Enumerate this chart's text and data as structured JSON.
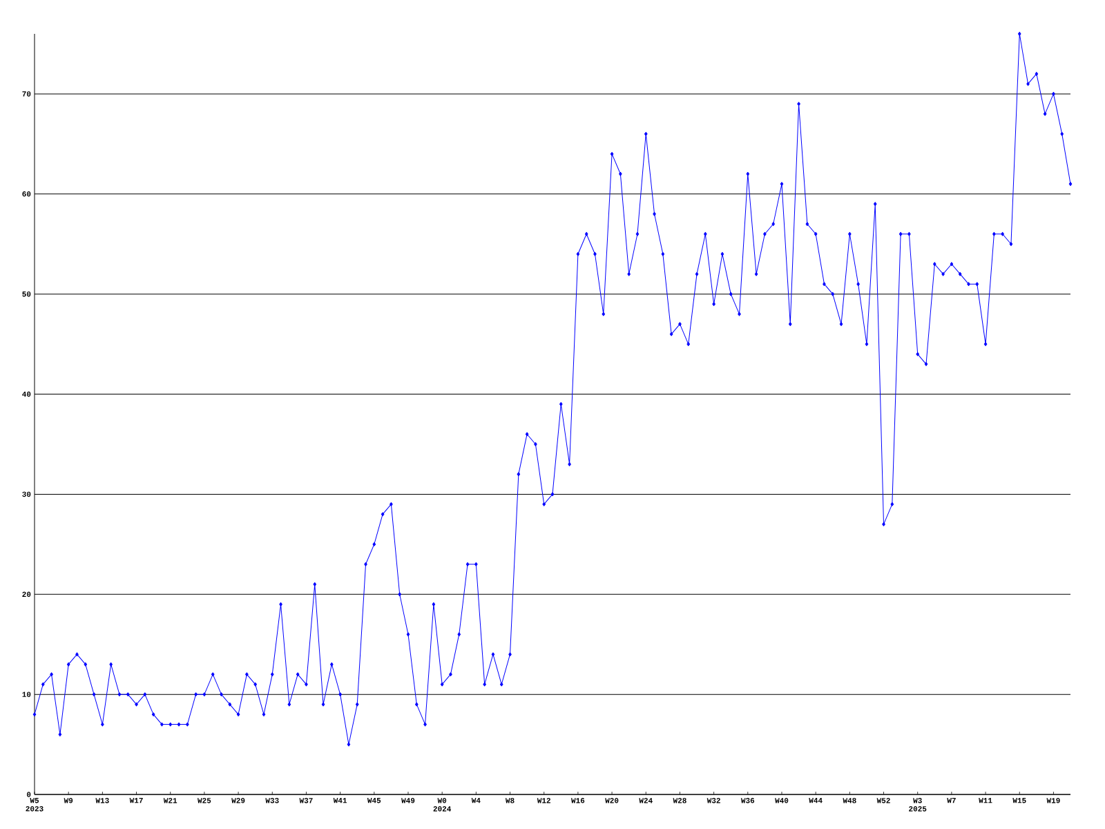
{
  "chart_data": {
    "type": "line",
    "categories": [
      "W5 2023",
      null,
      null,
      null,
      "W9",
      null,
      null,
      null,
      "W13",
      null,
      null,
      null,
      "W17",
      null,
      null,
      null,
      "W21",
      null,
      null,
      null,
      "W25",
      null,
      null,
      null,
      "W29",
      null,
      null,
      null,
      "W33",
      null,
      null,
      null,
      "W37",
      null,
      null,
      null,
      "W41",
      null,
      null,
      null,
      "W45",
      null,
      null,
      null,
      "W49",
      null,
      null,
      null,
      "W0 2024",
      null,
      null,
      null,
      "W4",
      null,
      null,
      null,
      "W8",
      null,
      null,
      null,
      "W12",
      null,
      null,
      null,
      "W16",
      null,
      null,
      null,
      "W20",
      null,
      null,
      null,
      "W24",
      null,
      null,
      null,
      "W28",
      null,
      null,
      null,
      "W32",
      null,
      null,
      null,
      "W36",
      null,
      null,
      null,
      "W40",
      null,
      null,
      null,
      "W44",
      null,
      null,
      null,
      "W48",
      null,
      null,
      null,
      "W52",
      null,
      null,
      null,
      "W3 2025",
      null,
      null,
      null,
      "W7",
      null,
      null,
      null,
      "W11",
      null,
      null,
      null,
      "W15",
      null,
      null,
      null,
      "W19",
      null,
      null
    ],
    "series": [
      {
        "color": "#0000ff",
        "values": [
          8,
          11,
          12,
          6,
          13,
          14,
          13,
          10,
          7,
          13,
          10,
          10,
          9,
          10,
          8,
          7,
          7,
          7,
          7,
          10,
          10,
          12,
          10,
          9,
          8,
          12,
          11,
          8,
          12,
          19,
          9,
          12,
          11,
          21,
          9,
          13,
          10,
          5,
          9,
          23,
          25,
          28,
          29,
          20,
          16,
          9,
          7,
          19,
          11,
          12,
          16,
          23,
          23,
          11,
          14,
          11,
          14,
          32,
          36,
          35,
          29,
          30,
          39,
          33,
          54,
          56,
          54,
          48,
          64,
          62,
          52,
          56,
          66,
          58,
          54,
          46,
          47,
          45,
          52,
          56,
          49,
          54,
          50,
          48,
          62,
          52,
          56,
          57,
          61,
          47,
          69,
          57,
          56,
          51,
          50,
          47,
          56,
          51,
          45,
          59,
          27,
          29,
          56,
          56,
          44,
          43,
          53,
          52,
          53,
          52,
          51,
          51,
          45,
          56,
          56,
          55,
          76,
          71,
          72,
          68,
          70,
          66,
          61
        ]
      }
    ],
    "ylim": [
      0,
      76
    ],
    "yticks": [
      0,
      10,
      20,
      30,
      40,
      50,
      60,
      70
    ],
    "grid": "y",
    "marker": "diamond"
  }
}
